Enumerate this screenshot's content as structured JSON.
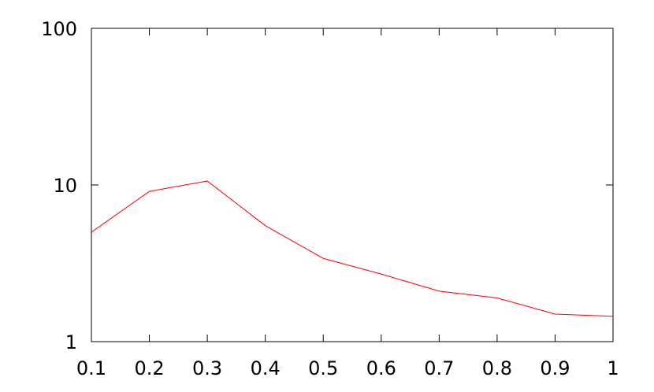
{
  "chart_data": {
    "type": "line",
    "x": [
      0.1,
      0.2,
      0.3,
      0.4,
      0.5,
      0.6,
      0.7,
      0.8,
      0.9,
      1
    ],
    "series": [
      {
        "color": "#ff0000",
        "values": [
          5.0,
          9.1,
          10.6,
          5.5,
          3.4,
          2.7,
          2.1,
          1.9,
          1.5,
          1.45
        ]
      }
    ],
    "xlim": [
      0.1,
      1
    ],
    "xticks": [
      0.1,
      0.2,
      0.3,
      0.4,
      0.5,
      0.6,
      0.7,
      0.8,
      0.9,
      1
    ],
    "ylim": [
      1,
      100
    ],
    "yticks": [
      1,
      10,
      100
    ],
    "ylog": true,
    "grid": false
  }
}
